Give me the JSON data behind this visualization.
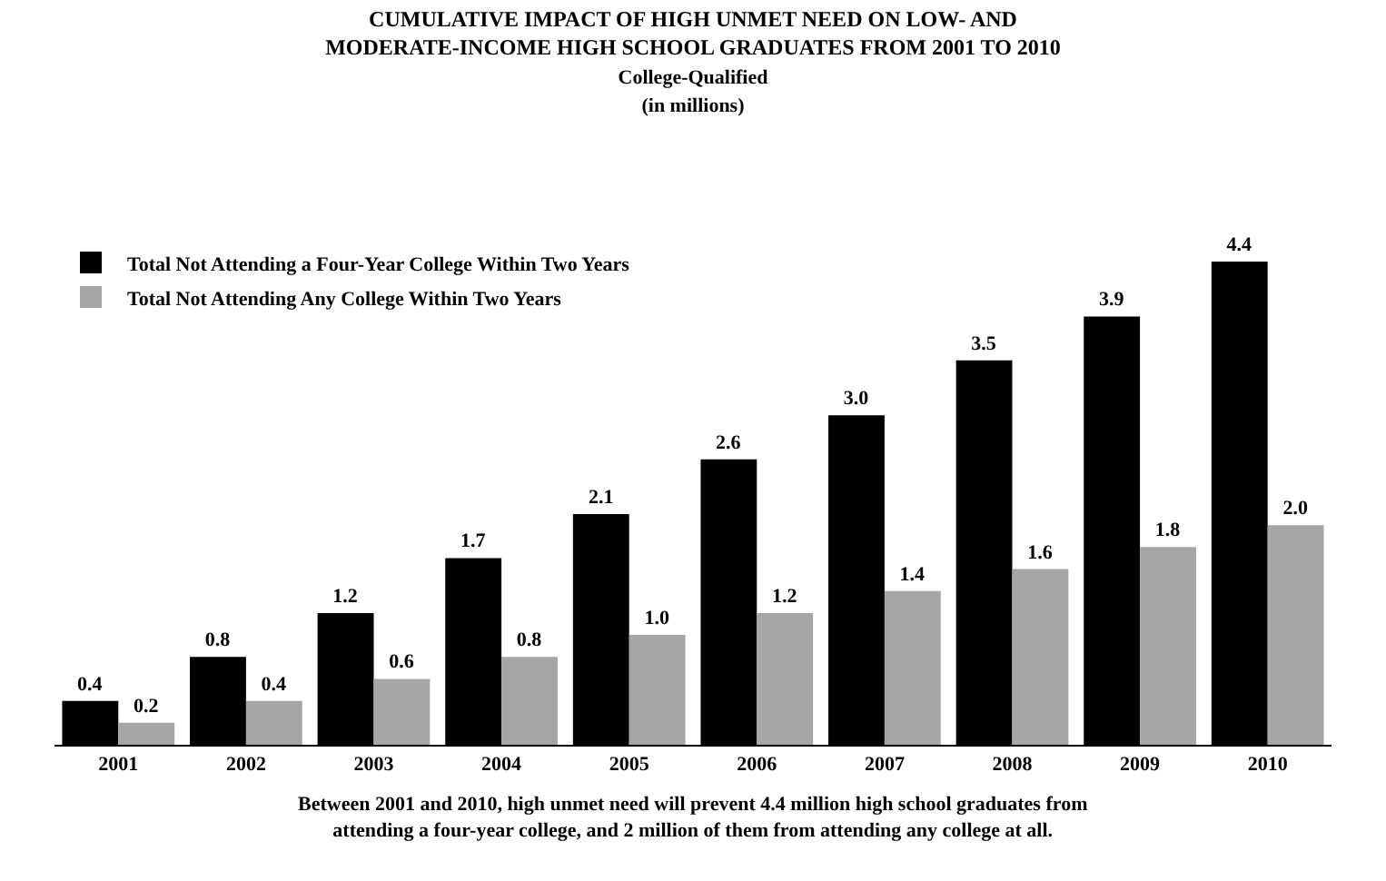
{
  "chart_data": {
    "type": "bar",
    "title": "CUMULATIVE IMPACT OF HIGH UNMET NEED ON LOW- AND MODERATE-INCOME HIGH SCHOOL GRADUATES FROM 2001 TO 2010",
    "subtitle": "College-Qualified (in millions)",
    "categories": [
      "2001",
      "2002",
      "2003",
      "2004",
      "2005",
      "2006",
      "2007",
      "2008",
      "2009",
      "2010"
    ],
    "series": [
      {
        "name": "Total Not Attending a Four-Year College Within Two Years",
        "color": "#000000",
        "values": [
          0.4,
          0.8,
          1.2,
          1.7,
          2.1,
          2.6,
          3.0,
          3.5,
          3.9,
          4.4
        ],
        "value_labels": [
          "0.4",
          "0.8",
          "1.2",
          "1.7",
          "2.1",
          "2.6",
          "3.0",
          "3.5",
          "3.9",
          "4.4"
        ]
      },
      {
        "name": "Total Not Attending Any College Within Two Years",
        "color": "#a6a6a6",
        "values": [
          0.2,
          0.4,
          0.6,
          0.8,
          1.0,
          1.2,
          1.4,
          1.6,
          1.8,
          2.0
        ],
        "value_labels": [
          "0.2",
          "0.4",
          "0.6",
          "0.8",
          "1.0",
          "1.2",
          "1.4",
          "1.6",
          "1.8",
          "2.0"
        ]
      }
    ],
    "legend": "top left",
    "annotations": [
      "Between 2001 and 2010, high unmet need will prevent 4.4 million high school graduates from attending a four-year college, and 2 million of them from attending any college at all."
    ]
  }
}
